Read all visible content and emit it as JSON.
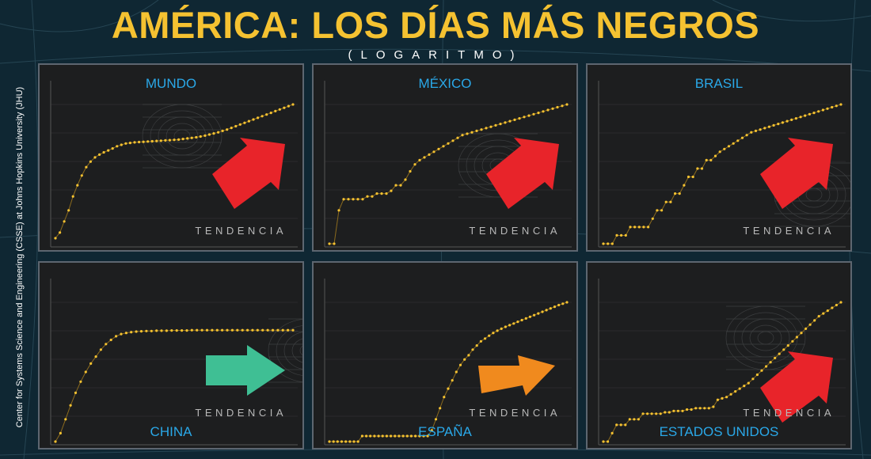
{
  "header": {
    "title_part1": "AMÉRICA:",
    "title_part2": "LOS DÍAS MÁS NEGROS",
    "subtitle": "(LOGARITMO)"
  },
  "source_label": "Center for Systems Science and Engineering (CSSE) at Johns Hopkins University (JHU)",
  "trend_word": "TENDENCIA",
  "colors": {
    "title": "#f5c231",
    "panel_label": "#2aa8e8",
    "dots": "#f5c231",
    "arrow_up": "#e8242a",
    "arrow_flat": "#3fbf94",
    "arrow_mid": "#f08a1e"
  },
  "chart_data": [
    {
      "type": "scatter",
      "title": "MUNDO",
      "scale": "log",
      "trend": "up",
      "arrow": "arrow-up-right-icon",
      "values": [
        0.2,
        0.4,
        0.8,
        1.2,
        1.7,
        2.1,
        2.45,
        2.75,
        2.95,
        3.1,
        3.2,
        3.28,
        3.35,
        3.42,
        3.5,
        3.55,
        3.6,
        3.62,
        3.64,
        3.65,
        3.66,
        3.67,
        3.68,
        3.69,
        3.7,
        3.71,
        3.72,
        3.73,
        3.74,
        3.76,
        3.78,
        3.8,
        3.82,
        3.85,
        3.88,
        3.92,
        3.96,
        4.0,
        4.05,
        4.1,
        4.16,
        4.22,
        4.28,
        4.34,
        4.4,
        4.46,
        4.52,
        4.58,
        4.64,
        4.7,
        4.76,
        4.82,
        4.88,
        4.94,
        5.0
      ]
    },
    {
      "type": "scatter",
      "title": "MÉXICO",
      "scale": "log",
      "trend": "up",
      "arrow": "arrow-up-right-icon",
      "values": [
        0.0,
        0.0,
        1.2,
        1.6,
        1.6,
        1.6,
        1.6,
        1.6,
        1.7,
        1.7,
        1.8,
        1.8,
        1.8,
        1.9,
        2.1,
        2.1,
        2.3,
        2.6,
        2.85,
        3.0,
        3.1,
        3.2,
        3.3,
        3.4,
        3.5,
        3.6,
        3.7,
        3.8,
        3.9,
        3.95,
        4.0,
        4.05,
        4.1,
        4.15,
        4.2,
        4.25,
        4.3,
        4.35,
        4.4,
        4.45,
        4.5,
        4.55,
        4.6,
        4.65,
        4.7,
        4.75,
        4.8,
        4.85,
        4.9,
        4.95,
        5.0
      ]
    },
    {
      "type": "scatter",
      "title": "BRASIL",
      "scale": "log",
      "trend": "up",
      "arrow": "arrow-up-right-icon",
      "values": [
        0.0,
        0.0,
        0.0,
        0.3,
        0.3,
        0.3,
        0.6,
        0.6,
        0.6,
        0.6,
        0.6,
        0.9,
        1.2,
        1.2,
        1.5,
        1.5,
        1.8,
        1.8,
        2.1,
        2.4,
        2.4,
        2.7,
        2.7,
        3.0,
        3.0,
        3.15,
        3.3,
        3.4,
        3.5,
        3.6,
        3.7,
        3.8,
        3.9,
        4.0,
        4.05,
        4.1,
        4.15,
        4.2,
        4.25,
        4.3,
        4.35,
        4.4,
        4.45,
        4.5,
        4.55,
        4.6,
        4.65,
        4.7,
        4.75,
        4.8,
        4.85,
        4.9,
        4.95,
        5.0
      ]
    },
    {
      "type": "scatter",
      "title": "CHINA",
      "scale": "log",
      "trend": "flat",
      "arrow": "arrow-right-icon",
      "values": [
        0.0,
        0.3,
        0.8,
        1.3,
        1.75,
        2.15,
        2.5,
        2.8,
        3.05,
        3.3,
        3.5,
        3.65,
        3.78,
        3.86,
        3.9,
        3.93,
        3.95,
        3.96,
        3.97,
        3.97,
        3.98,
        3.98,
        3.98,
        3.99,
        3.99,
        3.99,
        3.99,
        4.0,
        4.0,
        4.0,
        4.0,
        4.0,
        4.0,
        4.0,
        4.0,
        4.0,
        4.0,
        4.0,
        4.0,
        4.0,
        4.0,
        4.0,
        4.0,
        4.0,
        4.0,
        4.0,
        4.0,
        4.0
      ]
    },
    {
      "type": "scatter",
      "title": "ESPAÑA",
      "scale": "log",
      "trend": "moderate",
      "arrow": "arrow-diagonal-icon",
      "values": [
        0.0,
        0.0,
        0.0,
        0.0,
        0.0,
        0.0,
        0.0,
        0.0,
        0.2,
        0.2,
        0.2,
        0.2,
        0.2,
        0.2,
        0.2,
        0.2,
        0.2,
        0.2,
        0.2,
        0.2,
        0.2,
        0.2,
        0.2,
        0.2,
        0.2,
        0.4,
        0.8,
        1.2,
        1.6,
        1.9,
        2.2,
        2.5,
        2.75,
        2.95,
        3.1,
        3.3,
        3.45,
        3.6,
        3.7,
        3.8,
        3.9,
        3.98,
        4.05,
        4.12,
        4.18,
        4.24,
        4.3,
        4.36,
        4.42,
        4.48,
        4.54,
        4.6,
        4.66,
        4.72,
        4.78,
        4.84,
        4.9,
        4.95,
        5.0
      ]
    },
    {
      "type": "scatter",
      "title": "ESTADOS UNIDOS",
      "scale": "log",
      "trend": "up",
      "arrow": "arrow-up-right-icon",
      "values": [
        0.0,
        0.0,
        0.3,
        0.6,
        0.6,
        0.6,
        0.8,
        0.8,
        0.8,
        1.0,
        1.0,
        1.0,
        1.0,
        1.0,
        1.05,
        1.05,
        1.1,
        1.1,
        1.1,
        1.15,
        1.15,
        1.2,
        1.2,
        1.2,
        1.2,
        1.25,
        1.5,
        1.55,
        1.6,
        1.7,
        1.8,
        1.9,
        2.0,
        2.1,
        2.25,
        2.4,
        2.55,
        2.7,
        2.85,
        3.0,
        3.15,
        3.3,
        3.45,
        3.6,
        3.75,
        3.9,
        4.05,
        4.2,
        4.35,
        4.5,
        4.6,
        4.7,
        4.8,
        4.9,
        5.0
      ]
    }
  ]
}
